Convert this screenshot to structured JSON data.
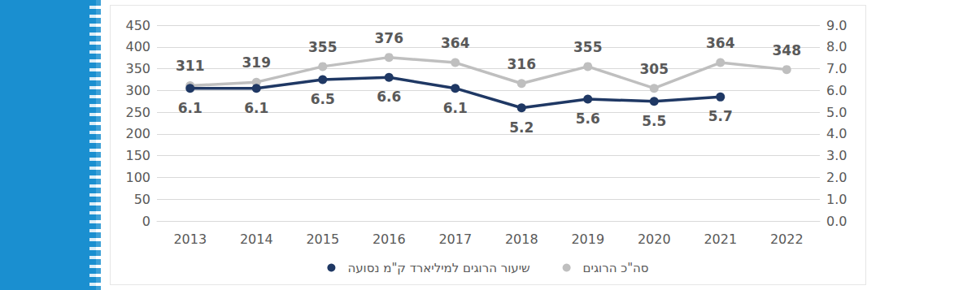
{
  "chart_data": {
    "type": "line",
    "categories": [
      "2013",
      "2014",
      "2015",
      "2016",
      "2017",
      "2018",
      "2019",
      "2020",
      "2021",
      "2022"
    ],
    "series": [
      {
        "name": "סה\"כ הרוגים",
        "color": "#bfbfbf",
        "marker": "circle",
        "values": [
          311,
          319,
          355,
          376,
          364,
          316,
          355,
          305,
          364,
          348
        ]
      },
      {
        "name": "שיעור הרוגים למיליארד ק\"מ נסועה",
        "color": "#1f3864",
        "marker": "circle",
        "axis": "y2",
        "values": [
          6.1,
          6.1,
          6.5,
          6.6,
          6.1,
          5.2,
          5.6,
          5.5,
          5.7,
          null
        ]
      }
    ],
    "ylim": [
      0,
      450
    ],
    "yticks": [
      0,
      50,
      100,
      150,
      200,
      250,
      300,
      350,
      400,
      450
    ],
    "y2lim": [
      0,
      9
    ],
    "y2ticks": [
      {
        "value": 0,
        "label": "0.0"
      },
      {
        "value": 1,
        "label": "1.0"
      },
      {
        "value": 2,
        "label": "2.0"
      },
      {
        "value": 3,
        "label": "3.0"
      },
      {
        "value": 4,
        "label": "4.0"
      },
      {
        "value": 5,
        "label": "5.0"
      },
      {
        "value": 6,
        "label": "6.0"
      },
      {
        "value": 7,
        "label": "7.0"
      },
      {
        "value": 8,
        "label": "8.0"
      },
      {
        "value": 9,
        "label": "9.0"
      }
    ],
    "grid": true,
    "legend": "bottom",
    "data_labels": true
  }
}
